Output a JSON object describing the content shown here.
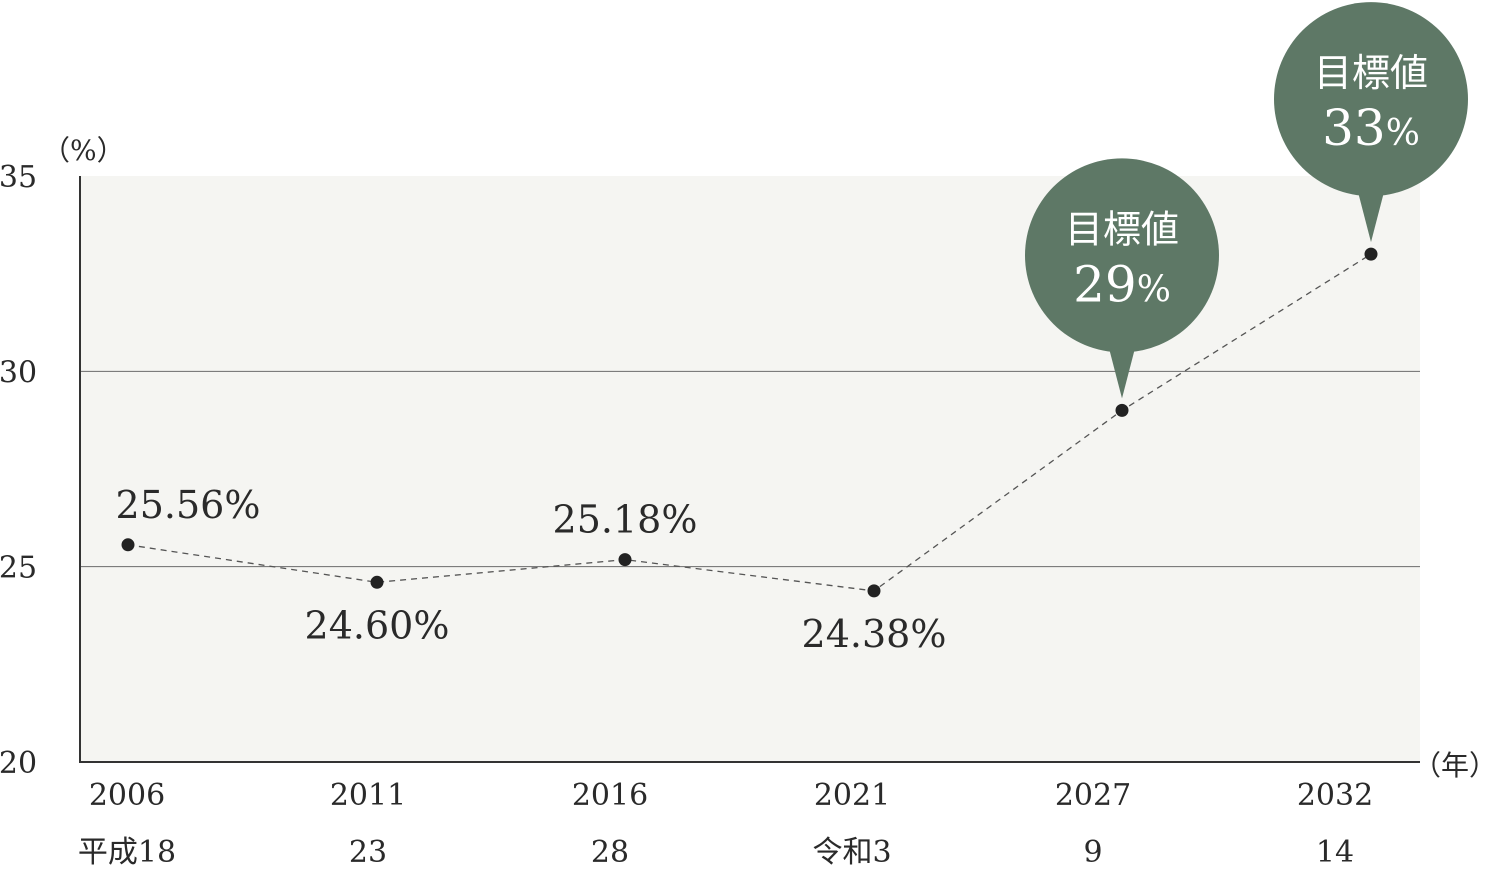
{
  "chart_data": {
    "type": "line",
    "x": [
      "2006",
      "2011",
      "2016",
      "2021",
      "2027",
      "2032"
    ],
    "x_secondary_labels": [
      "平成18",
      "23",
      "28",
      "令和3",
      "9",
      "14"
    ],
    "values": [
      25.56,
      24.6,
      25.18,
      24.38,
      29,
      33
    ],
    "data_labels": [
      "25.56%",
      "24.60%",
      "25.18%",
      "24.38%",
      "",
      ""
    ],
    "data_label_position": [
      "above",
      "below",
      "above",
      "below",
      "",
      ""
    ],
    "targets": [
      {
        "index": 4,
        "title": "目標値",
        "value_text": "29",
        "unit": "%"
      },
      {
        "index": 5,
        "title": "目標値",
        "value_text": "33",
        "unit": "%"
      }
    ],
    "ylabel": "（%）",
    "xlabel": "（年）",
    "ylim": [
      20,
      35
    ],
    "yticks": [
      "20",
      "25",
      "30",
      "35"
    ],
    "grid": true,
    "line_style": "dashed",
    "colors": {
      "plot_bg": "#f5f5f2",
      "bubble": "#5e7866",
      "line": "#555555",
      "point": "#222222",
      "grid": "#6b6b6b"
    }
  }
}
